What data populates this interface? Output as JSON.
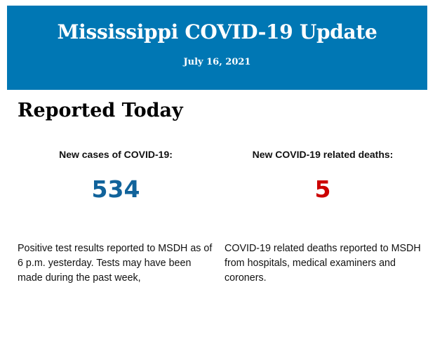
{
  "header": {
    "title": "Mississippi COVID-19 Update",
    "date": "July 16, 2021",
    "background_color": "#0077b4"
  },
  "section": {
    "title": "Reported Today"
  },
  "cases": {
    "label": "New cases of COVID-19:",
    "value": "534",
    "color": "#11639b",
    "description": "Positive test results reported to MSDH as of 6 p.m. yesterday. Tests may have been made during the past week,"
  },
  "deaths": {
    "label": "New COVID-19 related deaths:",
    "value": "5",
    "color": "#cc0000",
    "description": "COVID-19 related deaths reported to MSDH from hospitals, medical examiners and coroners."
  }
}
